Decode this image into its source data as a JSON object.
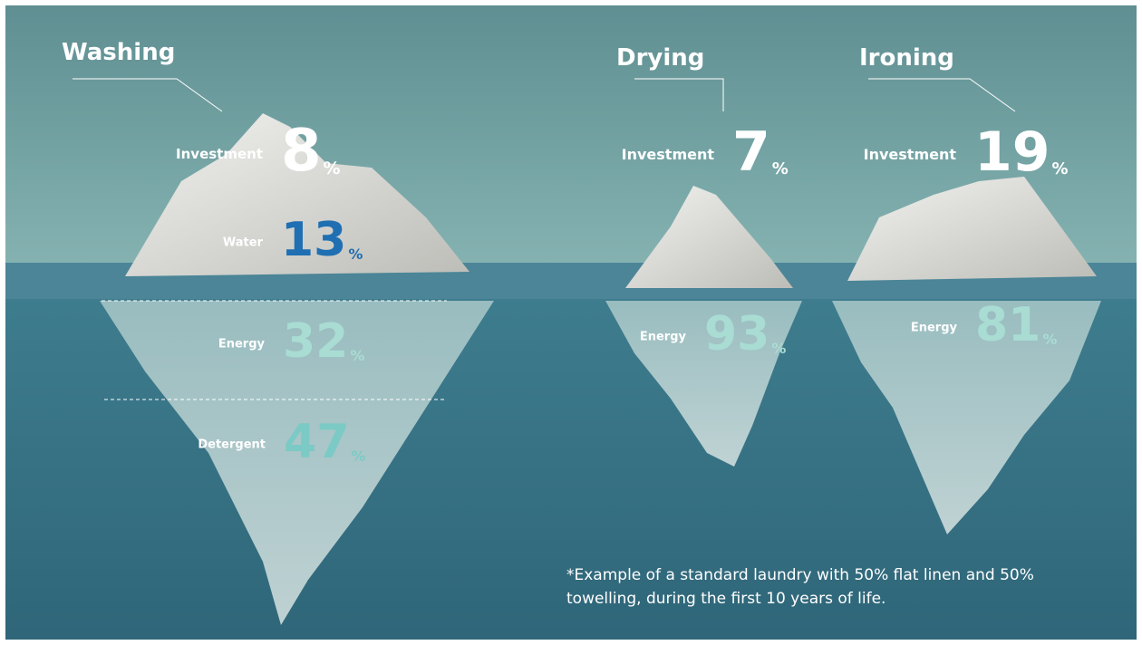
{
  "groups": [
    {
      "title": "Washing",
      "items": [
        {
          "label": "Investment",
          "value": 8,
          "unit": "%"
        },
        {
          "label": "Water",
          "value": 13,
          "unit": "%"
        },
        {
          "label": "Energy",
          "value": 32,
          "unit": "%"
        },
        {
          "label": "Detergent",
          "value": 47,
          "unit": "%"
        }
      ]
    },
    {
      "title": "Drying",
      "items": [
        {
          "label": "Investment",
          "value": 7,
          "unit": "%"
        },
        {
          "label": "Energy",
          "value": 93,
          "unit": "%"
        }
      ]
    },
    {
      "title": "Ironing",
      "items": [
        {
          "label": "Investment",
          "value": 19,
          "unit": "%"
        },
        {
          "label": "Energy",
          "value": 81,
          "unit": "%"
        }
      ]
    }
  ],
  "footnote": "*Example of a standard laundry with 50% flat linen and 50% towelling, during the first 10 years of life."
}
